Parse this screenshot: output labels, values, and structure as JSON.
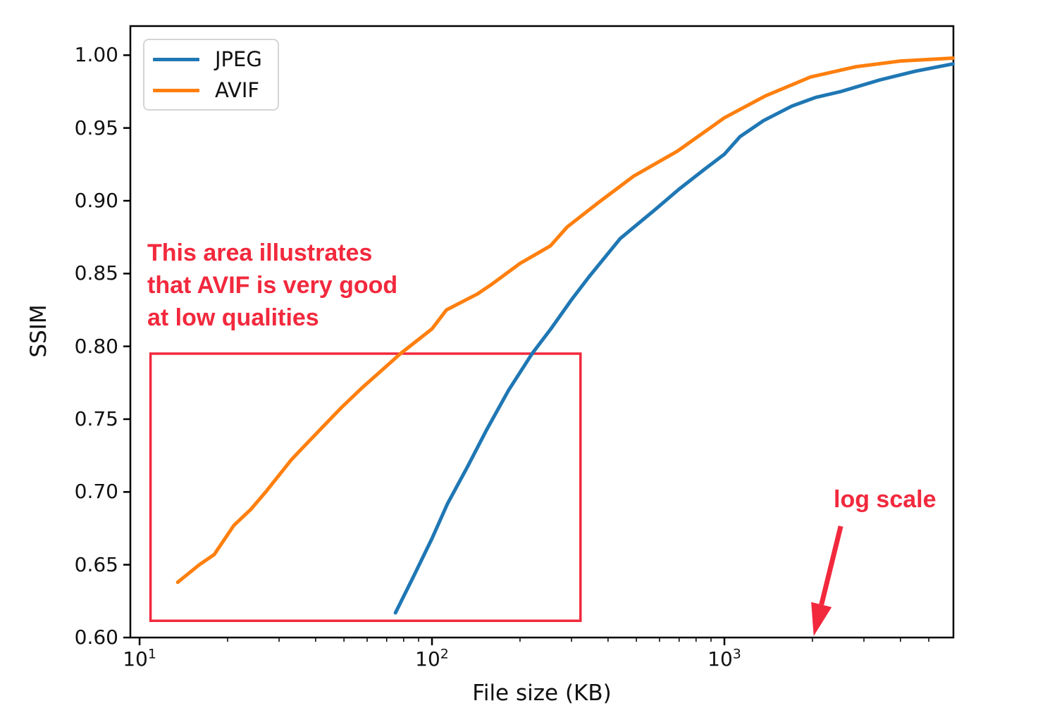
{
  "chart_data": {
    "type": "line",
    "title": "",
    "xlabel": "File size (KB)",
    "ylabel": "SSIM",
    "x_scale": "log",
    "grid": false,
    "legend_position": "upper left",
    "xlim": [
      9.3,
      6070
    ],
    "ylim": [
      0.6,
      1.02
    ],
    "y_ticks": [
      {
        "value": 1.0,
        "label": "1.00"
      },
      {
        "value": 0.95,
        "label": "0.95"
      },
      {
        "value": 0.9,
        "label": "0.90"
      },
      {
        "value": 0.85,
        "label": "0.85"
      },
      {
        "value": 0.8,
        "label": "0.80"
      },
      {
        "value": 0.75,
        "label": "0.75"
      },
      {
        "value": 0.7,
        "label": "0.70"
      },
      {
        "value": 0.65,
        "label": "0.65"
      },
      {
        "value": 0.6,
        "label": "0.60"
      }
    ],
    "x_ticks": [
      {
        "value": 10,
        "base": "10",
        "exp": "1"
      },
      {
        "value": 100,
        "base": "10",
        "exp": "2"
      },
      {
        "value": 1000,
        "base": "10",
        "exp": "3"
      }
    ],
    "x_minor_ticks": [
      20,
      30,
      40,
      50,
      60,
      70,
      80,
      90,
      200,
      300,
      400,
      500,
      600,
      700,
      800,
      900,
      2000,
      3000,
      4000,
      5000
    ],
    "series": [
      {
        "name": "JPEG",
        "color": "#1f77b4",
        "points": [
          [
            75,
            0.617
          ],
          [
            86,
            0.641
          ],
          [
            100,
            0.668
          ],
          [
            113,
            0.692
          ],
          [
            132,
            0.717
          ],
          [
            154,
            0.743
          ],
          [
            183,
            0.77
          ],
          [
            220,
            0.795
          ],
          [
            255,
            0.812
          ],
          [
            300,
            0.832
          ],
          [
            345,
            0.848
          ],
          [
            440,
            0.874
          ],
          [
            580,
            0.894
          ],
          [
            700,
            0.908
          ],
          [
            860,
            0.922
          ],
          [
            1000,
            0.932
          ],
          [
            1130,
            0.944
          ],
          [
            1360,
            0.955
          ],
          [
            1700,
            0.965
          ],
          [
            2050,
            0.971
          ],
          [
            2500,
            0.975
          ],
          [
            3400,
            0.983
          ],
          [
            4500,
            0.989
          ],
          [
            6050,
            0.994
          ]
        ]
      },
      {
        "name": "AVIF",
        "color": "#ff7f0e",
        "points": [
          [
            13.5,
            0.638
          ],
          [
            16,
            0.65
          ],
          [
            18,
            0.657
          ],
          [
            21,
            0.677
          ],
          [
            24,
            0.688
          ],
          [
            27,
            0.7
          ],
          [
            33,
            0.722
          ],
          [
            36,
            0.73
          ],
          [
            42,
            0.744
          ],
          [
            49,
            0.758
          ],
          [
            58,
            0.772
          ],
          [
            66,
            0.782
          ],
          [
            78,
            0.795
          ],
          [
            100,
            0.812
          ],
          [
            112,
            0.825
          ],
          [
            143,
            0.836
          ],
          [
            161,
            0.843
          ],
          [
            200,
            0.857
          ],
          [
            254,
            0.869
          ],
          [
            290,
            0.882
          ],
          [
            372,
            0.899
          ],
          [
            490,
            0.917
          ],
          [
            690,
            0.934
          ],
          [
            1000,
            0.957
          ],
          [
            1380,
            0.972
          ],
          [
            1970,
            0.985
          ],
          [
            2800,
            0.992
          ],
          [
            4000,
            0.996
          ],
          [
            6050,
            0.998
          ]
        ]
      }
    ],
    "annotations": {
      "color": "#f2293d",
      "box": {
        "x1": 10.9,
        "y1": 0.6115,
        "x2": 322,
        "y2": 0.795
      },
      "note_lines": [
        "This area illustrates",
        "that AVIF is very good",
        "at low qualities"
      ],
      "log_note": "log scale",
      "arrow": {
        "from": [
          2500,
          0.6765
        ],
        "to": [
          2020,
          0.601
        ]
      }
    }
  }
}
